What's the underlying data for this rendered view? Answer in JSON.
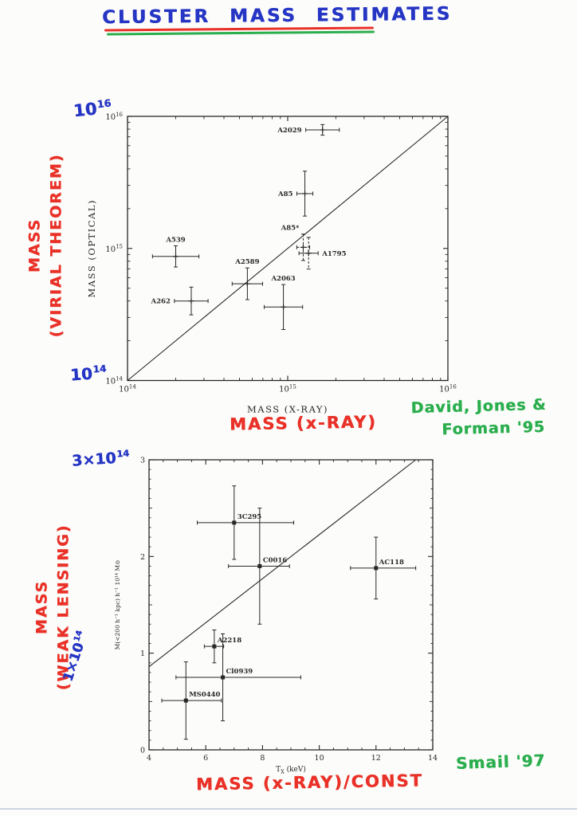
{
  "colors": {
    "handwriting_blue": "#2535c4",
    "handwriting_red": "#e93128",
    "handwriting_green": "#2bae4e",
    "printed_ink": "#272727"
  },
  "annotations": {
    "title": "CLUSTER MASS ESTIMATES",
    "top_mass_exp": {
      "base": "10",
      "exp": "16"
    },
    "bottom_mass_exp": {
      "base": "10",
      "exp": "14"
    },
    "virial_axis": {
      "line1": "MASS",
      "line2": "(VIRIAL THEOREM)"
    },
    "xray_axis": "MASS (x-RAY)",
    "top_credit": {
      "line1": "David, Jones &",
      "line2": "Forman '95"
    },
    "lensing_high_exp": {
      "base": "3×10",
      "exp": "14"
    },
    "lensing_low_exp": {
      "base": "1×10",
      "exp": "14"
    },
    "lensing_axis": {
      "line1": "MASS",
      "line2": "(WEAK LENSING)"
    },
    "xray_const_axis": "MASS (x-RAY)/CONST",
    "bottom_credit": "Smail '97"
  },
  "chart_data": [
    {
      "type": "scatter",
      "id": "mass-optical-vs-xray",
      "xlabel": "MASS (X-RAY)",
      "ylabel": "MASS (OPTICAL)",
      "xscale": "log",
      "yscale": "log",
      "xlim": [
        100000000000000.0,
        1e+16
      ],
      "ylim": [
        100000000000000.0,
        1e+16
      ],
      "x_tick_exponents": [
        14,
        15,
        16
      ],
      "y_tick_exponents": [
        14,
        15,
        16
      ],
      "identity_line": true,
      "points": [
        {
          "label": "A2029",
          "x": 1650000000000000.0,
          "y": 7900000000000000.0,
          "xerr_dex": 0.105,
          "yerr_dex": 0.04,
          "label_side": "left"
        },
        {
          "label": "A85",
          "x": 1280000000000000.0,
          "y": 2600000000000000.0,
          "xerr_dex": 0.05,
          "yerr_dex": 0.17,
          "label_side": "left"
        },
        {
          "label": "A85*",
          "x": 1250000000000000.0,
          "y": 1020000000000000.0,
          "xerr_dex": 0.04,
          "yerr_dex": 0.1,
          "label_side": "upleft",
          "dash": "both"
        },
        {
          "label": "A1795",
          "x": 1350000000000000.0,
          "y": 920000000000000.0,
          "xerr_dex": 0.06,
          "yerr_dex": 0.12,
          "label_side": "right",
          "dash": "v"
        },
        {
          "label": "A539",
          "x": 200000000000000.0,
          "y": 870000000000000.0,
          "xerr_dex": 0.145,
          "yerr_dex": 0.08,
          "label_side": "above"
        },
        {
          "label": "A2589",
          "x": 560000000000000.0,
          "y": 540000000000000.0,
          "xerr_dex": 0.095,
          "yerr_dex": 0.12,
          "label_side": "above"
        },
        {
          "label": "A2063",
          "x": 940000000000000.0,
          "y": 360000000000000.0,
          "xerr_dex": 0.12,
          "yerr_dex": 0.17,
          "label_side": "above"
        },
        {
          "label": "A262",
          "x": 250000000000000.0,
          "y": 400000000000000.0,
          "xerr_dex": 0.105,
          "yerr_dex": 0.105,
          "label_side": "left"
        }
      ]
    },
    {
      "type": "scatter",
      "id": "lensing-mass-vs-temperature",
      "xlabel": {
        "pre": "T",
        "sub": "X",
        "post": " (keV)"
      },
      "ylabel": "M(<200 h⁻¹ kpc) h⁻¹ 10¹⁴ M⊙",
      "xscale": "linear",
      "yscale": "linear",
      "xlim": [
        4,
        14
      ],
      "ylim": [
        0,
        3
      ],
      "xticks": [
        4,
        6,
        8,
        10,
        12,
        14
      ],
      "yticks": [
        0,
        1,
        2,
        3
      ],
      "line": {
        "x": [
          4,
          13.4
        ],
        "y": [
          0.86,
          3.0
        ]
      },
      "points": [
        {
          "label": "3C295",
          "x": 7.0,
          "y": 2.35,
          "xerr_minus": 1.3,
          "xerr_plus": 2.1,
          "yerr": 0.38
        },
        {
          "label": "C0016",
          "x": 7.9,
          "y": 1.9,
          "xerr_minus": 1.1,
          "xerr_plus": 1.05,
          "yerr": 0.6
        },
        {
          "label": "AC118",
          "x": 12.0,
          "y": 1.88,
          "xerr_minus": 0.9,
          "xerr_plus": 1.4,
          "yerr": 0.32
        },
        {
          "label": "A2218",
          "x": 6.3,
          "y": 1.07,
          "xerr_minus": 0.35,
          "xerr_plus": 0.33,
          "yerr": 0.17
        },
        {
          "label": "Cl0939",
          "x": 6.6,
          "y": 0.75,
          "xerr_minus": 1.65,
          "xerr_plus": 2.75,
          "yerr": 0.45
        },
        {
          "label": "MS0440",
          "x": 5.3,
          "y": 0.51,
          "xerr_minus": 0.85,
          "xerr_plus": 1.25,
          "yerr": 0.4
        }
      ]
    }
  ]
}
